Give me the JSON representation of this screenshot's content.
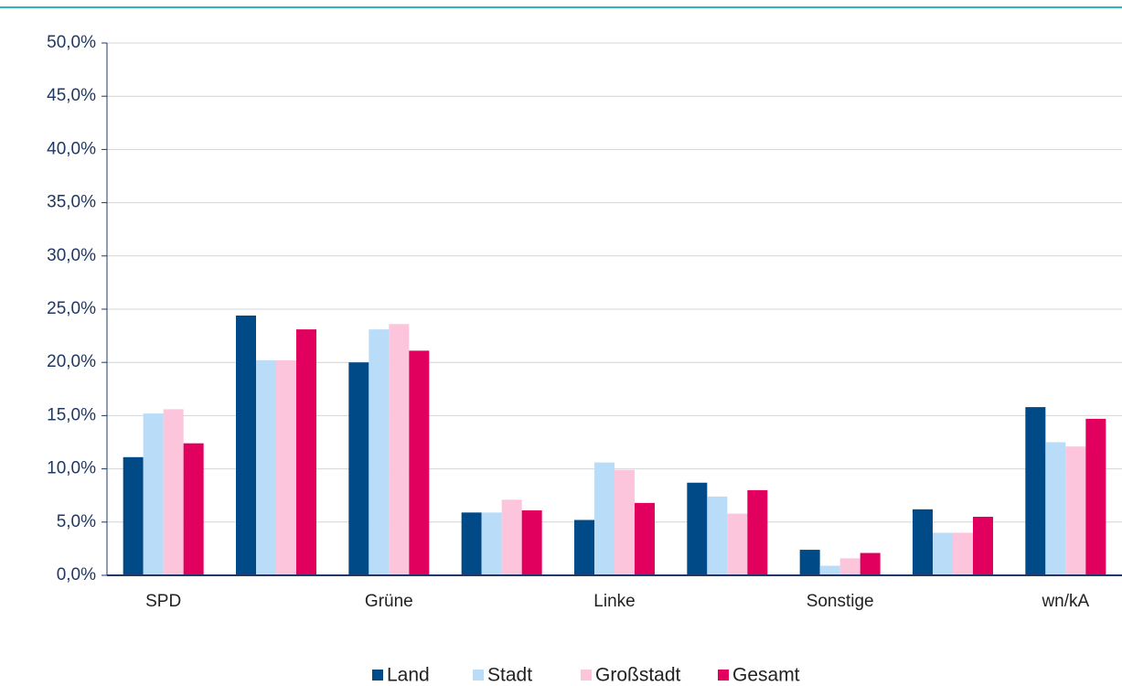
{
  "chart_data": {
    "type": "bar",
    "categories": [
      "SPD",
      null,
      "Grüne",
      null,
      "Linke",
      null,
      "Sonstige",
      null,
      "wn/kA"
    ],
    "series": [
      {
        "name": "Land",
        "color": "#004a87",
        "values": [
          11.1,
          24.4,
          20.0,
          5.9,
          5.2,
          8.7,
          2.4,
          6.2,
          15.8
        ]
      },
      {
        "name": "Stadt",
        "color": "#b9dcf9",
        "values": [
          15.2,
          20.2,
          23.1,
          5.9,
          10.6,
          7.4,
          0.9,
          4.0,
          12.5
        ]
      },
      {
        "name": "Großstadt",
        "color": "#fcc5dc",
        "values": [
          15.6,
          20.2,
          23.6,
          7.1,
          9.9,
          5.8,
          1.6,
          4.0,
          12.1
        ]
      },
      {
        "name": "Gesamt",
        "color": "#e2005e",
        "values": [
          12.4,
          23.1,
          21.1,
          6.1,
          6.8,
          8.0,
          2.1,
          5.5,
          14.7
        ]
      }
    ],
    "ylim": [
      0,
      50
    ],
    "yticks": [
      {
        "value": 0,
        "label": "0,0%"
      },
      {
        "value": 5,
        "label": "5,0%"
      },
      {
        "value": 10,
        "label": "10,0%"
      },
      {
        "value": 15,
        "label": "15,0%"
      },
      {
        "value": 20,
        "label": "20,0%"
      },
      {
        "value": 25,
        "label": "25,0%"
      },
      {
        "value": 30,
        "label": "30,0%"
      },
      {
        "value": 35,
        "label": "35,0%"
      },
      {
        "value": 40,
        "label": "40,0%"
      },
      {
        "value": 45,
        "label": "45,0%"
      },
      {
        "value": 50,
        "label": "50,0%"
      }
    ],
    "grid": true,
    "legend": "bottom"
  }
}
